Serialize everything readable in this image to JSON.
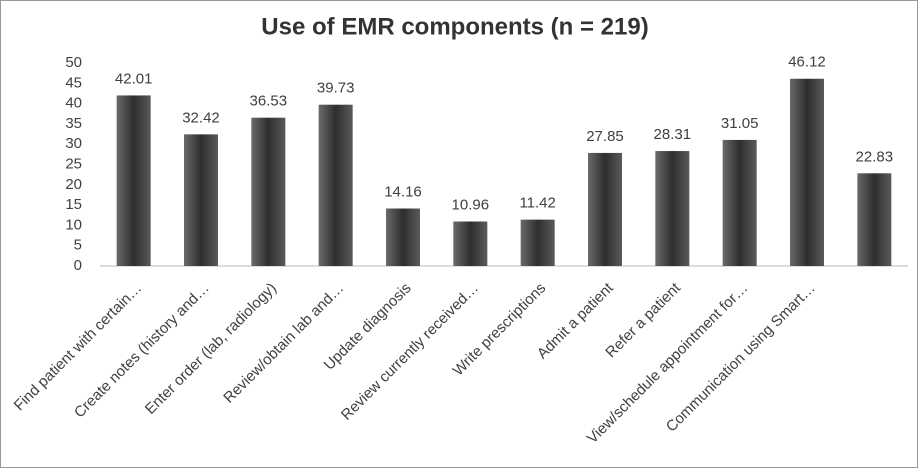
{
  "chart_data": {
    "type": "bar",
    "title": "Use of EMR components (n = 219)",
    "categories": [
      "Find patient with certain…",
      "Create notes (history and…",
      "Enter order (lab, radiology)",
      "Review/obtain lab and…",
      "Update diagnosis",
      "Review currently received…",
      "Write prescriptions",
      "Admit a patient",
      "Refer a patient",
      "View/schedule appointment for…",
      "Communication using Smart…",
      null
    ],
    "values": [
      42.01,
      32.42,
      36.53,
      39.73,
      14.16,
      10.96,
      11.42,
      27.85,
      28.31,
      31.05,
      46.12,
      22.83
    ],
    "color": "#404040",
    "ylim": [
      0,
      50
    ],
    "yticks": [
      0,
      5,
      10,
      15,
      20,
      25,
      30,
      35,
      40,
      45,
      50
    ],
    "grid": false
  }
}
